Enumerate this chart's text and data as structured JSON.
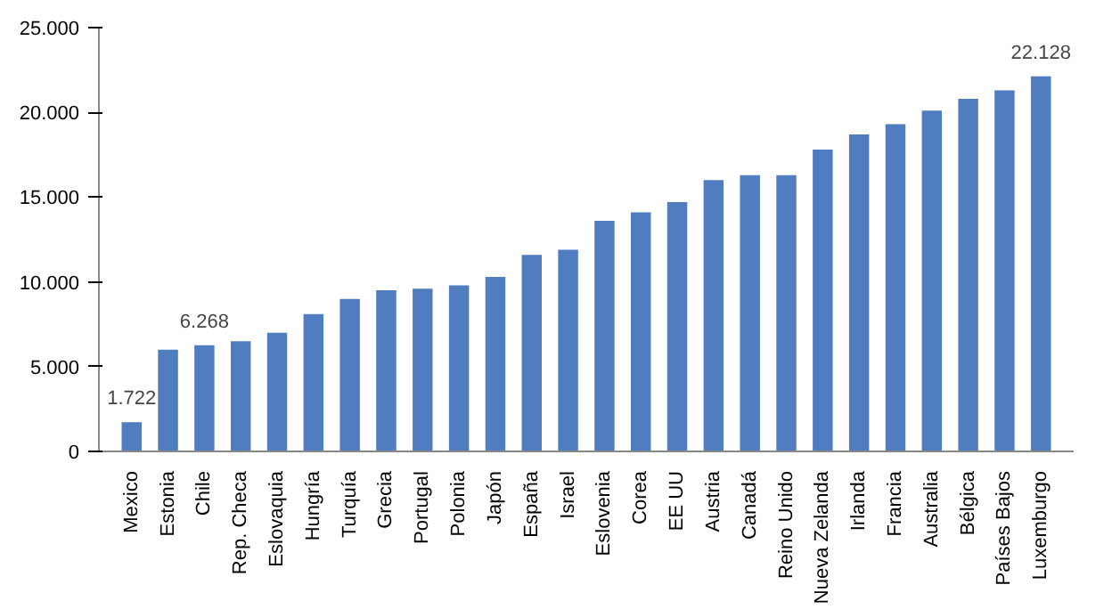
{
  "chart_data": {
    "type": "bar",
    "categories": [
      "Mexico",
      "Estonia",
      "Chile",
      "Rep. Checa",
      "Eslovaquia",
      "Hungría",
      "Turquía",
      "Grecia",
      "Portugal",
      "Polonia",
      "Japón",
      "España",
      "Israel",
      "Eslovenia",
      "Corea",
      "EE UU",
      "Austria",
      "Canadá",
      "Reino Unido",
      "Nueva Zelanda",
      "Irlanda",
      "Francia",
      "Australia",
      "Bélgica",
      "Países Bajos",
      "Luxemburgo"
    ],
    "values": [
      1722,
      6000,
      6268,
      6500,
      7000,
      8100,
      9000,
      9500,
      9600,
      9800,
      10300,
      11600,
      11900,
      13600,
      14100,
      14700,
      16000,
      16300,
      16300,
      17800,
      18700,
      19300,
      20100,
      20800,
      21300,
      22128
    ],
    "value_labels": [
      "1.722",
      null,
      "6.268",
      null,
      null,
      null,
      null,
      null,
      null,
      null,
      null,
      null,
      null,
      null,
      null,
      null,
      null,
      null,
      null,
      null,
      null,
      null,
      null,
      null,
      null,
      "22.128"
    ],
    "color": "#4f7dbf",
    "ylim": [
      0,
      25000
    ],
    "yticks": [
      {
        "value": 0,
        "label": "0"
      },
      {
        "value": 5000,
        "label": "5.000"
      },
      {
        "value": 10000,
        "label": "10.000"
      },
      {
        "value": 15000,
        "label": "15.000"
      },
      {
        "value": 20000,
        "label": "20.000"
      },
      {
        "value": 25000,
        "label": "25.000"
      }
    ],
    "grid": false
  }
}
